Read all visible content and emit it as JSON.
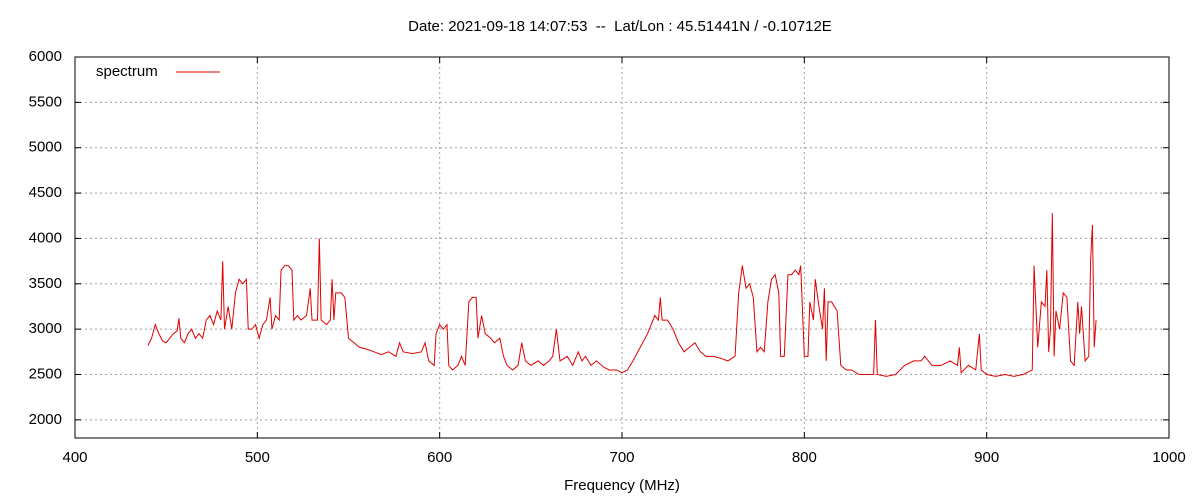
{
  "chart_data": {
    "type": "line",
    "title": "Date: 2021-09-18 14:07:53  --  Lat/Lon : 45.51441N / -0.10712E",
    "x_label": "Frequency (MHz)",
    "xlim": [
      400,
      1000
    ],
    "xticks": [
      400,
      500,
      600,
      700,
      800,
      900,
      1000
    ],
    "ylim": [
      1800,
      6000
    ],
    "yticks": [
      2000,
      2500,
      3000,
      3500,
      4000,
      4500,
      5000,
      5500,
      6000
    ],
    "grid": true,
    "legend": "top-left",
    "series": [
      {
        "name": "spectrum",
        "color": "#e00000",
        "x": [
          440,
          442,
          444,
          446,
          448,
          450,
          452,
          454,
          456,
          457,
          458,
          460,
          462,
          464,
          466,
          468,
          470,
          472,
          474,
          476,
          478,
          480,
          481,
          482,
          484,
          486,
          488,
          490,
          492,
          494,
          495,
          497,
          499,
          501,
          503,
          505,
          507,
          508,
          510,
          512,
          513,
          515,
          517,
          519,
          520,
          522,
          524,
          527,
          529,
          530,
          533,
          534,
          535,
          538,
          540,
          541,
          542,
          543,
          546,
          548,
          550,
          553,
          556,
          560,
          564,
          568,
          572,
          576,
          578,
          580,
          585,
          590,
          592,
          594,
          597,
          598,
          600,
          602,
          604,
          605,
          607,
          610,
          612,
          614,
          616,
          618,
          620,
          621,
          623,
          625,
          628,
          630,
          633,
          635,
          637,
          640,
          643,
          645,
          647,
          650,
          654,
          657,
          660,
          662,
          664,
          666,
          670,
          673,
          676,
          678,
          680,
          683,
          686,
          690,
          693,
          697,
          700,
          703,
          706,
          710,
          714,
          718,
          720,
          721,
          722,
          725,
          728,
          731,
          734,
          737,
          740,
          743,
          746,
          750,
          754,
          758,
          762,
          764,
          766,
          768,
          770,
          772,
          774,
          776,
          778,
          780,
          782,
          784,
          786,
          787,
          789,
          791,
          793,
          795,
          797,
          798,
          800,
          802,
          803,
          805,
          806,
          808,
          810,
          811,
          812,
          813,
          815,
          818,
          820,
          823,
          826,
          830,
          834,
          838,
          839,
          840,
          845,
          850,
          855,
          860,
          864,
          866,
          870,
          875,
          880,
          884,
          885,
          886,
          890,
          894,
          896,
          897,
          900,
          905,
          910,
          915,
          920,
          925,
          926,
          928,
          930,
          932,
          933,
          934,
          935,
          936,
          937,
          938,
          940,
          942,
          944,
          946,
          948,
          950,
          951,
          952,
          954,
          956,
          957,
          958,
          959,
          960
        ],
        "values": [
          2820,
          2900,
          3050,
          2950,
          2870,
          2850,
          2900,
          2950,
          2980,
          3120,
          2900,
          2850,
          2950,
          3000,
          2900,
          2950,
          2900,
          3100,
          3150,
          3050,
          3200,
          3100,
          3750,
          3000,
          3250,
          3000,
          3400,
          3550,
          3500,
          3550,
          3000,
          3000,
          3050,
          2900,
          3050,
          3100,
          3350,
          3000,
          3150,
          3100,
          3650,
          3700,
          3700,
          3650,
          3100,
          3150,
          3100,
          3150,
          3450,
          3100,
          3100,
          4000,
          3100,
          3050,
          3100,
          3550,
          3100,
          3400,
          3400,
          3350,
          2900,
          2850,
          2800,
          2780,
          2750,
          2720,
          2750,
          2700,
          2850,
          2750,
          2730,
          2750,
          2850,
          2650,
          2600,
          2950,
          3050,
          3000,
          3050,
          2600,
          2550,
          2600,
          2700,
          2600,
          3300,
          3350,
          3350,
          2900,
          3150,
          2950,
          2900,
          2850,
          2900,
          2700,
          2600,
          2550,
          2600,
          2850,
          2650,
          2600,
          2650,
          2600,
          2650,
          2700,
          3000,
          2650,
          2700,
          2600,
          2750,
          2650,
          2700,
          2600,
          2650,
          2580,
          2550,
          2550,
          2520,
          2550,
          2650,
          2800,
          2950,
          3150,
          3100,
          3350,
          3100,
          3100,
          3000,
          2850,
          2750,
          2800,
          2850,
          2750,
          2700,
          2700,
          2680,
          2650,
          2700,
          3400,
          3700,
          3450,
          3500,
          3350,
          2750,
          2800,
          2750,
          3300,
          3550,
          3600,
          3400,
          2700,
          2700,
          3600,
          3600,
          3650,
          3600,
          3700,
          2700,
          2700,
          3300,
          3100,
          3550,
          3250,
          3000,
          3450,
          2650,
          3300,
          3300,
          3200,
          2600,
          2550,
          2550,
          2500,
          2500,
          2500,
          3100,
          2500,
          2480,
          2500,
          2600,
          2650,
          2650,
          2700,
          2600,
          2600,
          2650,
          2600,
          2800,
          2520,
          2600,
          2550,
          2950,
          2550,
          2500,
          2480,
          2500,
          2480,
          2500,
          2550,
          3700,
          2800,
          3300,
          3250,
          3650,
          2750,
          3000,
          4280,
          2700,
          3200,
          3000,
          3400,
          3350,
          2650,
          2600,
          3300,
          2950,
          3250,
          2650,
          2700,
          3750,
          4150,
          2800,
          3100
        ]
      }
    ]
  }
}
